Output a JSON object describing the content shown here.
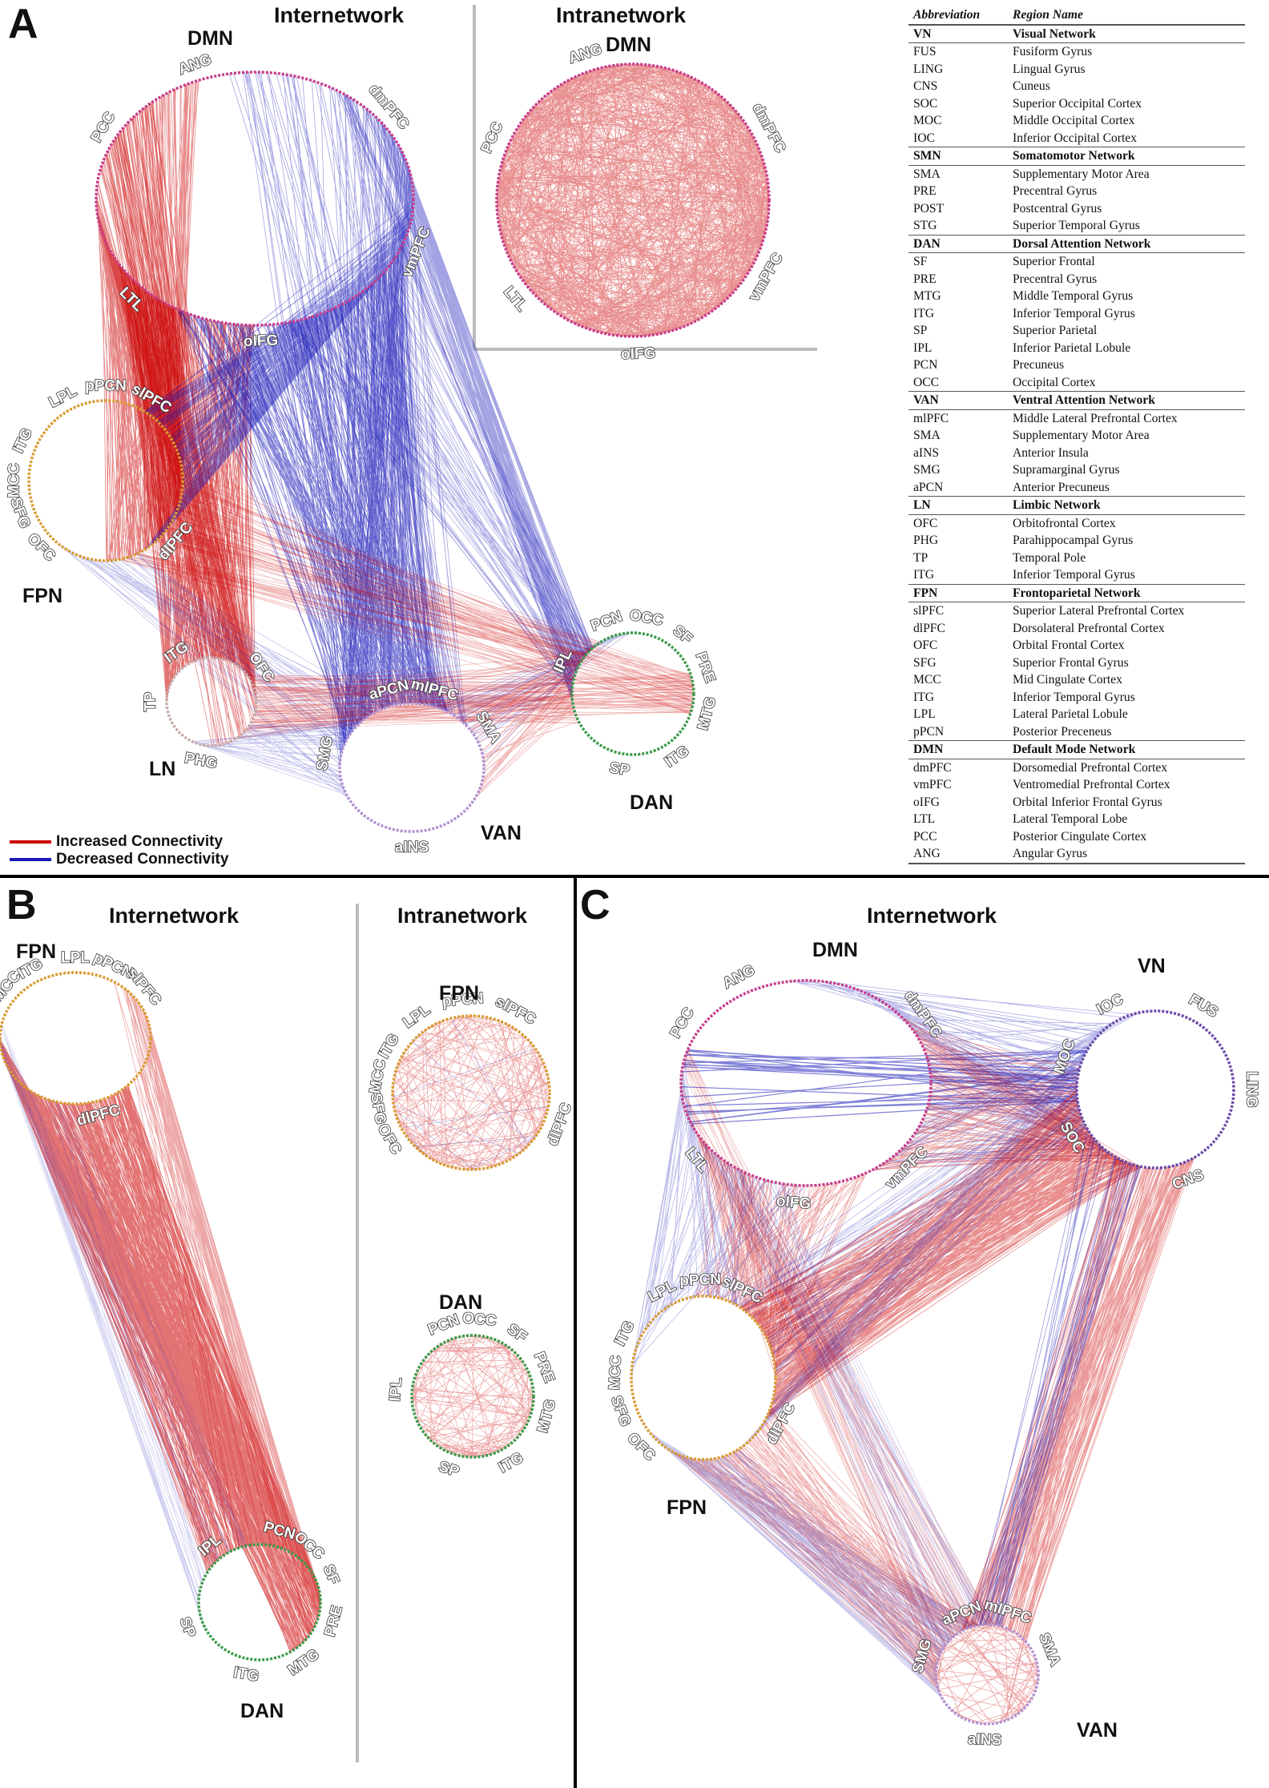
{
  "panels": {
    "a": {
      "letter": "A",
      "inter_title": "Internetwork",
      "intra_title": "Intranetwork",
      "networks": {
        "dmn": {
          "name": "DMN",
          "regions": [
            "ANG",
            "dmPFC",
            "vmPFC",
            "oIFG",
            "LTL",
            "PCC"
          ]
        },
        "fpn": {
          "name": "FPN",
          "regions": [
            "LPL",
            "pPCN",
            "slPFC",
            "dlPFC",
            "OFC",
            "SFG",
            "MCC",
            "ITG"
          ]
        },
        "ln": {
          "name": "LN",
          "regions": [
            "ITG",
            "OFC",
            "PHG",
            "TP"
          ]
        },
        "van": {
          "name": "VAN",
          "regions": [
            "aPCN",
            "mlPFC",
            "SMA",
            "aINS",
            "SMG"
          ]
        },
        "dan": {
          "name": "DAN",
          "regions": [
            "PCN",
            "OCC",
            "SF",
            "PRE",
            "MTG",
            "ITG",
            "SP",
            "IPL"
          ]
        }
      },
      "intra": {
        "name": "DMN",
        "regions": [
          "ANG",
          "dmPFC",
          "vmPFC",
          "oIFG",
          "LTL",
          "PCC"
        ]
      },
      "legend": {
        "increased": "Increased Connectivity",
        "decreased": "Decreased Connectivity"
      }
    },
    "b": {
      "letter": "B",
      "inter_title": "Internetwork",
      "intra_title": "Intranetwork",
      "networks": {
        "fpn": {
          "name": "FPN",
          "regions": [
            "OFC",
            "SFG",
            "MCC",
            "ITG",
            "LPL",
            "pPCN",
            "slPFC",
            "dlPFC"
          ]
        },
        "dan": {
          "name": "DAN",
          "regions": [
            "IPL",
            "PCN",
            "OCC",
            "SF",
            "PRE",
            "MTG",
            "ITG",
            "SP"
          ]
        }
      },
      "intra": {
        "fpn": {
          "name": "FPN",
          "regions": [
            "LPL",
            "pPCN",
            "slPFC",
            "dlPFC",
            "OFC",
            "SFG",
            "MCC",
            "ITG"
          ]
        },
        "dan": {
          "name": "DAN",
          "regions": [
            "PCN",
            "OCC",
            "SF",
            "PRE",
            "MTG",
            "ITG",
            "SP",
            "IPL"
          ]
        }
      }
    },
    "c": {
      "letter": "C",
      "inter_title": "Internetwork",
      "networks": {
        "dmn": {
          "name": "DMN",
          "regions": [
            "ANG",
            "dmPFC",
            "vmPFC",
            "oIFG",
            "LTL",
            "PCC"
          ]
        },
        "vn": {
          "name": "VN",
          "regions": [
            "IOC",
            "FUS",
            "LING",
            "CNS",
            "SOC",
            "MOC"
          ]
        },
        "fpn": {
          "name": "FPN",
          "regions": [
            "LPL",
            "pPCN",
            "slPFC",
            "dlPFC",
            "OFC",
            "SFG",
            "MCC",
            "ITG"
          ]
        },
        "van": {
          "name": "VAN",
          "regions": [
            "aPCN",
            "mlPFC",
            "SMA",
            "aINS",
            "SMG"
          ]
        }
      }
    }
  },
  "table": {
    "headers": [
      "Abbreviation",
      "Region Name"
    ],
    "rows": [
      {
        "abbr": "VN",
        "name": "Visual Network",
        "section": true
      },
      {
        "abbr": "FUS",
        "name": "Fusiform Gyrus"
      },
      {
        "abbr": "LING",
        "name": "Lingual Gyrus"
      },
      {
        "abbr": "CNS",
        "name": "Cuneus"
      },
      {
        "abbr": "SOC",
        "name": "Superior Occipital Cortex"
      },
      {
        "abbr": "MOC",
        "name": "Middle Occipital Cortex"
      },
      {
        "abbr": "IOC",
        "name": "Inferior Occipital Cortex"
      },
      {
        "abbr": "SMN",
        "name": "Somatomotor Network",
        "section": true
      },
      {
        "abbr": "SMA",
        "name": "Supplementary Motor Area"
      },
      {
        "abbr": "PRE",
        "name": "Precentral Gyrus"
      },
      {
        "abbr": "POST",
        "name": "Postcentral Gyrus"
      },
      {
        "abbr": "STG",
        "name": "Superior Temporal Gyrus"
      },
      {
        "abbr": "DAN",
        "name": "Dorsal Attention Network",
        "section": true
      },
      {
        "abbr": "SF",
        "name": "Superior Frontal"
      },
      {
        "abbr": "PRE",
        "name": "Precentral Gyrus"
      },
      {
        "abbr": "MTG",
        "name": "Middle Temporal Gyrus"
      },
      {
        "abbr": "ITG",
        "name": "Inferior Temporal Gyrus"
      },
      {
        "abbr": "SP",
        "name": "Superior Parietal"
      },
      {
        "abbr": "IPL",
        "name": "Inferior Parietal Lobule"
      },
      {
        "abbr": "PCN",
        "name": "Precuneus"
      },
      {
        "abbr": "OCC",
        "name": "Occipital Cortex"
      },
      {
        "abbr": "VAN",
        "name": "Ventral Attention Network",
        "section": true
      },
      {
        "abbr": "mlPFC",
        "name": "Middle Lateral Prefrontal Cortex"
      },
      {
        "abbr": "SMA",
        "name": "Supplementary Motor Area"
      },
      {
        "abbr": "aINS",
        "name": "Anterior Insula"
      },
      {
        "abbr": "SMG",
        "name": "Supramarginal Gyrus"
      },
      {
        "abbr": "aPCN",
        "name": "Anterior Precuneus"
      },
      {
        "abbr": "LN",
        "name": "Limbic Network",
        "section": true
      },
      {
        "abbr": "OFC",
        "name": "Orbitofrontal Cortex"
      },
      {
        "abbr": "PHG",
        "name": "Parahippocampal Gyrus"
      },
      {
        "abbr": "TP",
        "name": "Temporal Pole"
      },
      {
        "abbr": "ITG",
        "name": "Inferior Temporal Gyrus"
      },
      {
        "abbr": "FPN",
        "name": "Frontoparietal Network",
        "section": true
      },
      {
        "abbr": "slPFC",
        "name": "Superior Lateral Prefrontal Cortex"
      },
      {
        "abbr": "dlPFC",
        "name": "Dorsolateral Prefrontal Cortex"
      },
      {
        "abbr": "OFC",
        "name": "Orbital Frontal Cortex"
      },
      {
        "abbr": "SFG",
        "name": "Superior Frontal Gyrus"
      },
      {
        "abbr": "MCC",
        "name": "Mid Cingulate Cortex"
      },
      {
        "abbr": "ITG",
        "name": "Inferior Temporal Gyrus"
      },
      {
        "abbr": "LPL",
        "name": "Lateral Parietal Lobule"
      },
      {
        "abbr": "pPCN",
        "name": "Posterior Preceneus"
      },
      {
        "abbr": "DMN",
        "name": "Default Mode Network",
        "section": true
      },
      {
        "abbr": "dmPFC",
        "name": "Dorsomedial Prefrontal Cortex"
      },
      {
        "abbr": "vmPFC",
        "name": "Ventromedial Prefrontal Cortex"
      },
      {
        "abbr": "oIFG",
        "name": "Orbital Inferior Frontal Gyrus"
      },
      {
        "abbr": "LTL",
        "name": "Lateral Temporal Lobe"
      },
      {
        "abbr": "PCC",
        "name": "Posterior Cingulate Cortex"
      },
      {
        "abbr": "ANG",
        "name": "Angular Gyrus"
      }
    ]
  },
  "colors": {
    "increased": "#cc0000",
    "decreased": "#1a1ab8",
    "ring_dmn": "#c83c8c",
    "ring_fpn": "#d99a30",
    "ring_dan": "#3a9a48",
    "ring_van": "#b090d0",
    "ring_ln": "#c8a8a8",
    "ring_vn": "#6a4aa8"
  }
}
